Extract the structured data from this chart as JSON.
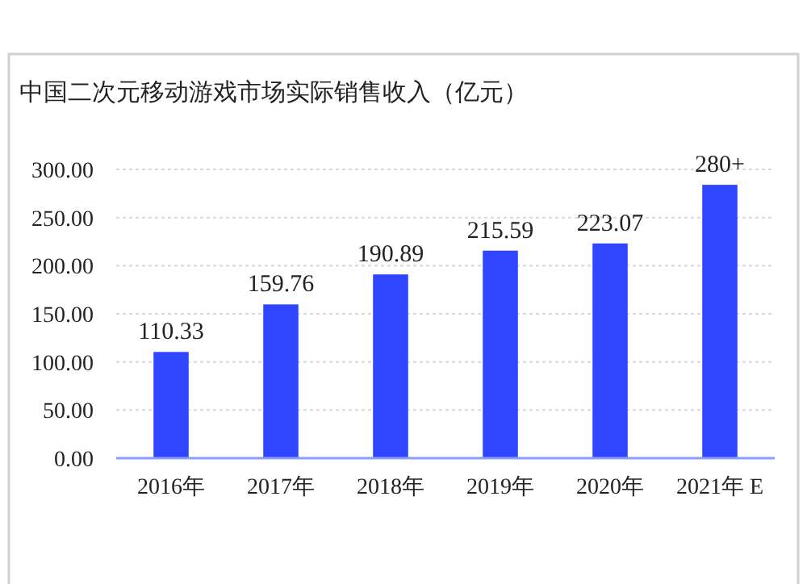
{
  "chart_data": {
    "type": "bar",
    "title": "中国二次元移动游戏市场实际销售收入（亿元）",
    "categories": [
      "2016年",
      "2017年",
      "2018年",
      "2019年",
      "2020年",
      "2021年 E"
    ],
    "values": [
      110.33,
      159.76,
      190.89,
      215.59,
      223.07,
      284
    ],
    "value_labels": [
      "110.33",
      "159.76",
      "190.89",
      "215.59",
      "223.07",
      "280+"
    ],
    "color": "#2f45ff",
    "ylim": [
      0,
      300
    ],
    "yticks": [
      {
        "value": 0,
        "label": "0.00"
      },
      {
        "value": 50,
        "label": "50.00"
      },
      {
        "value": 100,
        "label": "100.00"
      },
      {
        "value": 150,
        "label": "150.00"
      },
      {
        "value": 200,
        "label": "200.00"
      },
      {
        "value": 250,
        "label": "250.00"
      },
      {
        "value": 300,
        "label": "300.00"
      }
    ],
    "grid": "y"
  }
}
